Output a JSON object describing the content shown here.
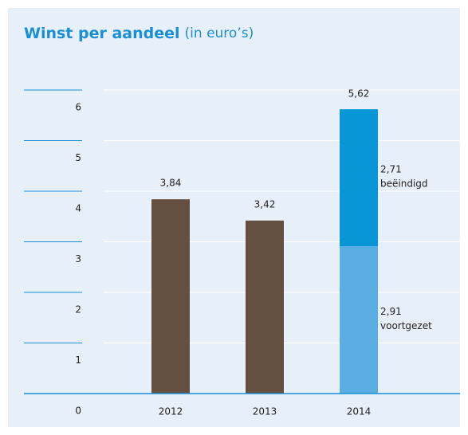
{
  "chart_data": {
    "type": "stacked_bar",
    "title": "Winst per aandeel",
    "subtitle": "(in euro’s)",
    "categories": [
      "2012",
      "2013",
      "2014"
    ],
    "series": [
      {
        "color": "#654f40",
        "values": [
          3.84,
          3.42,
          null
        ],
        "value_labels": [
          "3,84",
          "3,42",
          null
        ]
      },
      {
        "name": "voortgezet",
        "color": "#5aaee2",
        "values": [
          null,
          null,
          2.91
        ],
        "value_labels": [
          null,
          null,
          "2,91"
        ]
      },
      {
        "name": "beëindigd",
        "color": "#0996d6",
        "values": [
          null,
          null,
          2.71
        ],
        "value_labels": [
          null,
          null,
          "2,71"
        ]
      }
    ],
    "totals": {
      "values": [
        null,
        null,
        5.62
      ],
      "value_labels": [
        null,
        null,
        "5,62"
      ]
    },
    "ylim": [
      0,
      6
    ],
    "yticks": [
      0,
      1,
      2,
      3,
      4,
      5,
      6
    ],
    "grid": true
  }
}
